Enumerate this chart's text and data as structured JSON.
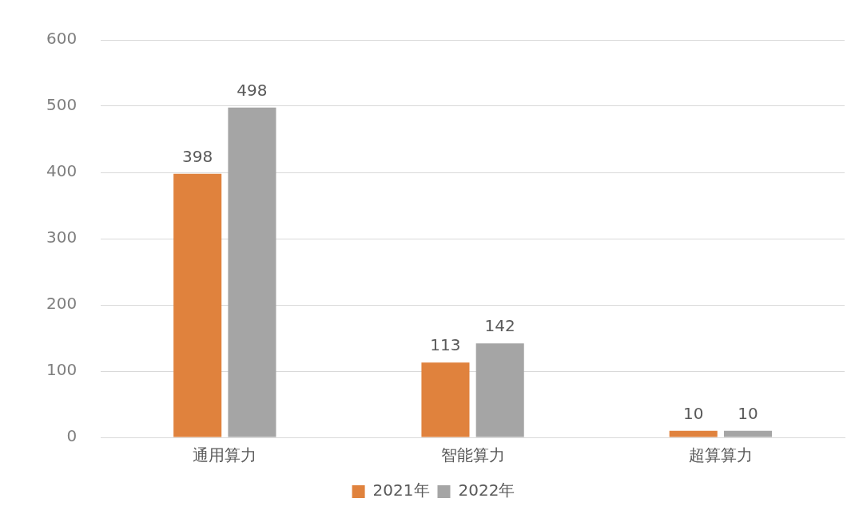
{
  "chart_data": {
    "type": "bar",
    "categories": [
      "通用算力",
      "智能算力",
      "超算算力"
    ],
    "series": [
      {
        "name": "2021年",
        "color": "#e0823d",
        "values": [
          398,
          113,
          10
        ]
      },
      {
        "name": "2022年",
        "color": "#a5a5a5",
        "values": [
          498,
          142,
          10
        ]
      }
    ],
    "ylim": [
      0,
      600
    ],
    "yticks": [
      0,
      100,
      200,
      300,
      400,
      500,
      600
    ],
    "grid": "y",
    "legend": "bottom",
    "data_labels": true
  }
}
